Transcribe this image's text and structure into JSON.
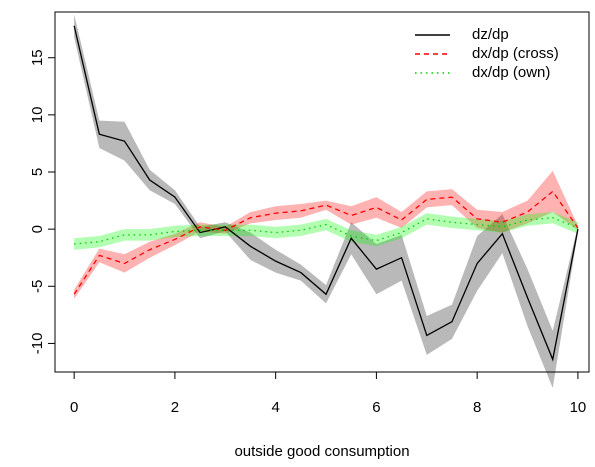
{
  "chart_data": {
    "type": "line",
    "x_label": "outside good consumption",
    "x": [
      0,
      0.5,
      1,
      1.5,
      2,
      2.5,
      3,
      3.5,
      4,
      4.5,
      5,
      5.5,
      6,
      6.5,
      7,
      7.5,
      8,
      8.5,
      9,
      9.5,
      10
    ],
    "xlim": [
      -0.38,
      10.22
    ],
    "xticks": [
      0,
      2,
      4,
      6,
      8,
      10
    ],
    "ylim": [
      -12.5,
      19
    ],
    "yticks": [
      -10,
      -5,
      0,
      5,
      10,
      15
    ],
    "legend": "top-right",
    "series": [
      {
        "name": "dz/dp",
        "color": "#000000",
        "band_color": "rgba(128,128,128,0.55)",
        "dash": "solid",
        "values": [
          17.8,
          8.3,
          7.7,
          4.3,
          2.8,
          -0.3,
          0.2,
          -1.5,
          -2.8,
          -3.8,
          -5.7,
          -0.8,
          -3.5,
          -2.5,
          -9.3,
          -8.1,
          -3.0,
          -0.4,
          -6.0,
          -11.4,
          0
        ],
        "lower": [
          16.8,
          7.1,
          6.0,
          3.4,
          2.2,
          -0.8,
          -0.2,
          -2.7,
          -3.8,
          -4.5,
          -6.5,
          -2.2,
          -5.7,
          -4.5,
          -11.0,
          -9.6,
          -5.4,
          -2.1,
          -8.5,
          -13.9,
          -0.3
        ],
        "upper": [
          18.8,
          9.5,
          9.4,
          5.2,
          3.4,
          0.2,
          0.6,
          -0.3,
          -1.8,
          -3.1,
          -4.9,
          0.6,
          -1.3,
          -0.5,
          -7.6,
          -6.6,
          -0.6,
          1.3,
          -3.5,
          -8.9,
          0.3
        ]
      },
      {
        "name": "dx/dp (cross)",
        "color": "#ff0000",
        "band_color": "rgba(255,0,0,0.3)",
        "dash": "dashed",
        "values": [
          -5.7,
          -2.3,
          -3.0,
          -1.8,
          -0.9,
          0.2,
          -0.1,
          1.0,
          1.4,
          1.6,
          2.1,
          1.2,
          1.9,
          0.8,
          2.6,
          2.8,
          0.9,
          0.6,
          1.5,
          3.3,
          0.1
        ],
        "lower": [
          -6.1,
          -2.9,
          -3.8,
          -2.5,
          -1.4,
          -0.2,
          -0.4,
          0.5,
          0.8,
          1.0,
          1.7,
          0.4,
          1.0,
          0.1,
          1.9,
          2.1,
          0.1,
          -0.3,
          0.5,
          1.5,
          -0.1
        ],
        "upper": [
          -5.3,
          -1.7,
          -2.2,
          -1.1,
          -0.4,
          0.6,
          0.2,
          1.5,
          2.0,
          2.2,
          2.5,
          2.0,
          2.8,
          1.5,
          3.3,
          3.5,
          1.7,
          1.5,
          2.5,
          5.1,
          0.3
        ]
      },
      {
        "name": "dx/dp (own)",
        "color": "#00cd00",
        "band_color": "rgba(0,255,0,0.3)",
        "dash": "dotted",
        "values": [
          -1.3,
          -1.1,
          -0.5,
          -0.5,
          -0.2,
          -0.1,
          -0.1,
          -0.1,
          -0.3,
          -0.1,
          0.4,
          -0.6,
          -1.0,
          -0.3,
          0.9,
          0.6,
          0.4,
          0.2,
          0.8,
          1.0,
          0.1
        ],
        "lower": [
          -1.8,
          -1.6,
          -1.0,
          -1.0,
          -0.7,
          -0.6,
          -0.6,
          -0.6,
          -0.8,
          -0.6,
          -0.1,
          -1.1,
          -1.5,
          -0.8,
          0.4,
          0.1,
          -0.1,
          -0.3,
          0.3,
          0.5,
          -0.4
        ],
        "upper": [
          -0.8,
          -0.6,
          0.0,
          0.0,
          0.3,
          0.4,
          0.4,
          0.4,
          0.2,
          0.4,
          0.9,
          -0.1,
          -0.5,
          0.2,
          1.4,
          1.1,
          0.9,
          0.7,
          1.3,
          1.5,
          0.6
        ]
      }
    ]
  }
}
